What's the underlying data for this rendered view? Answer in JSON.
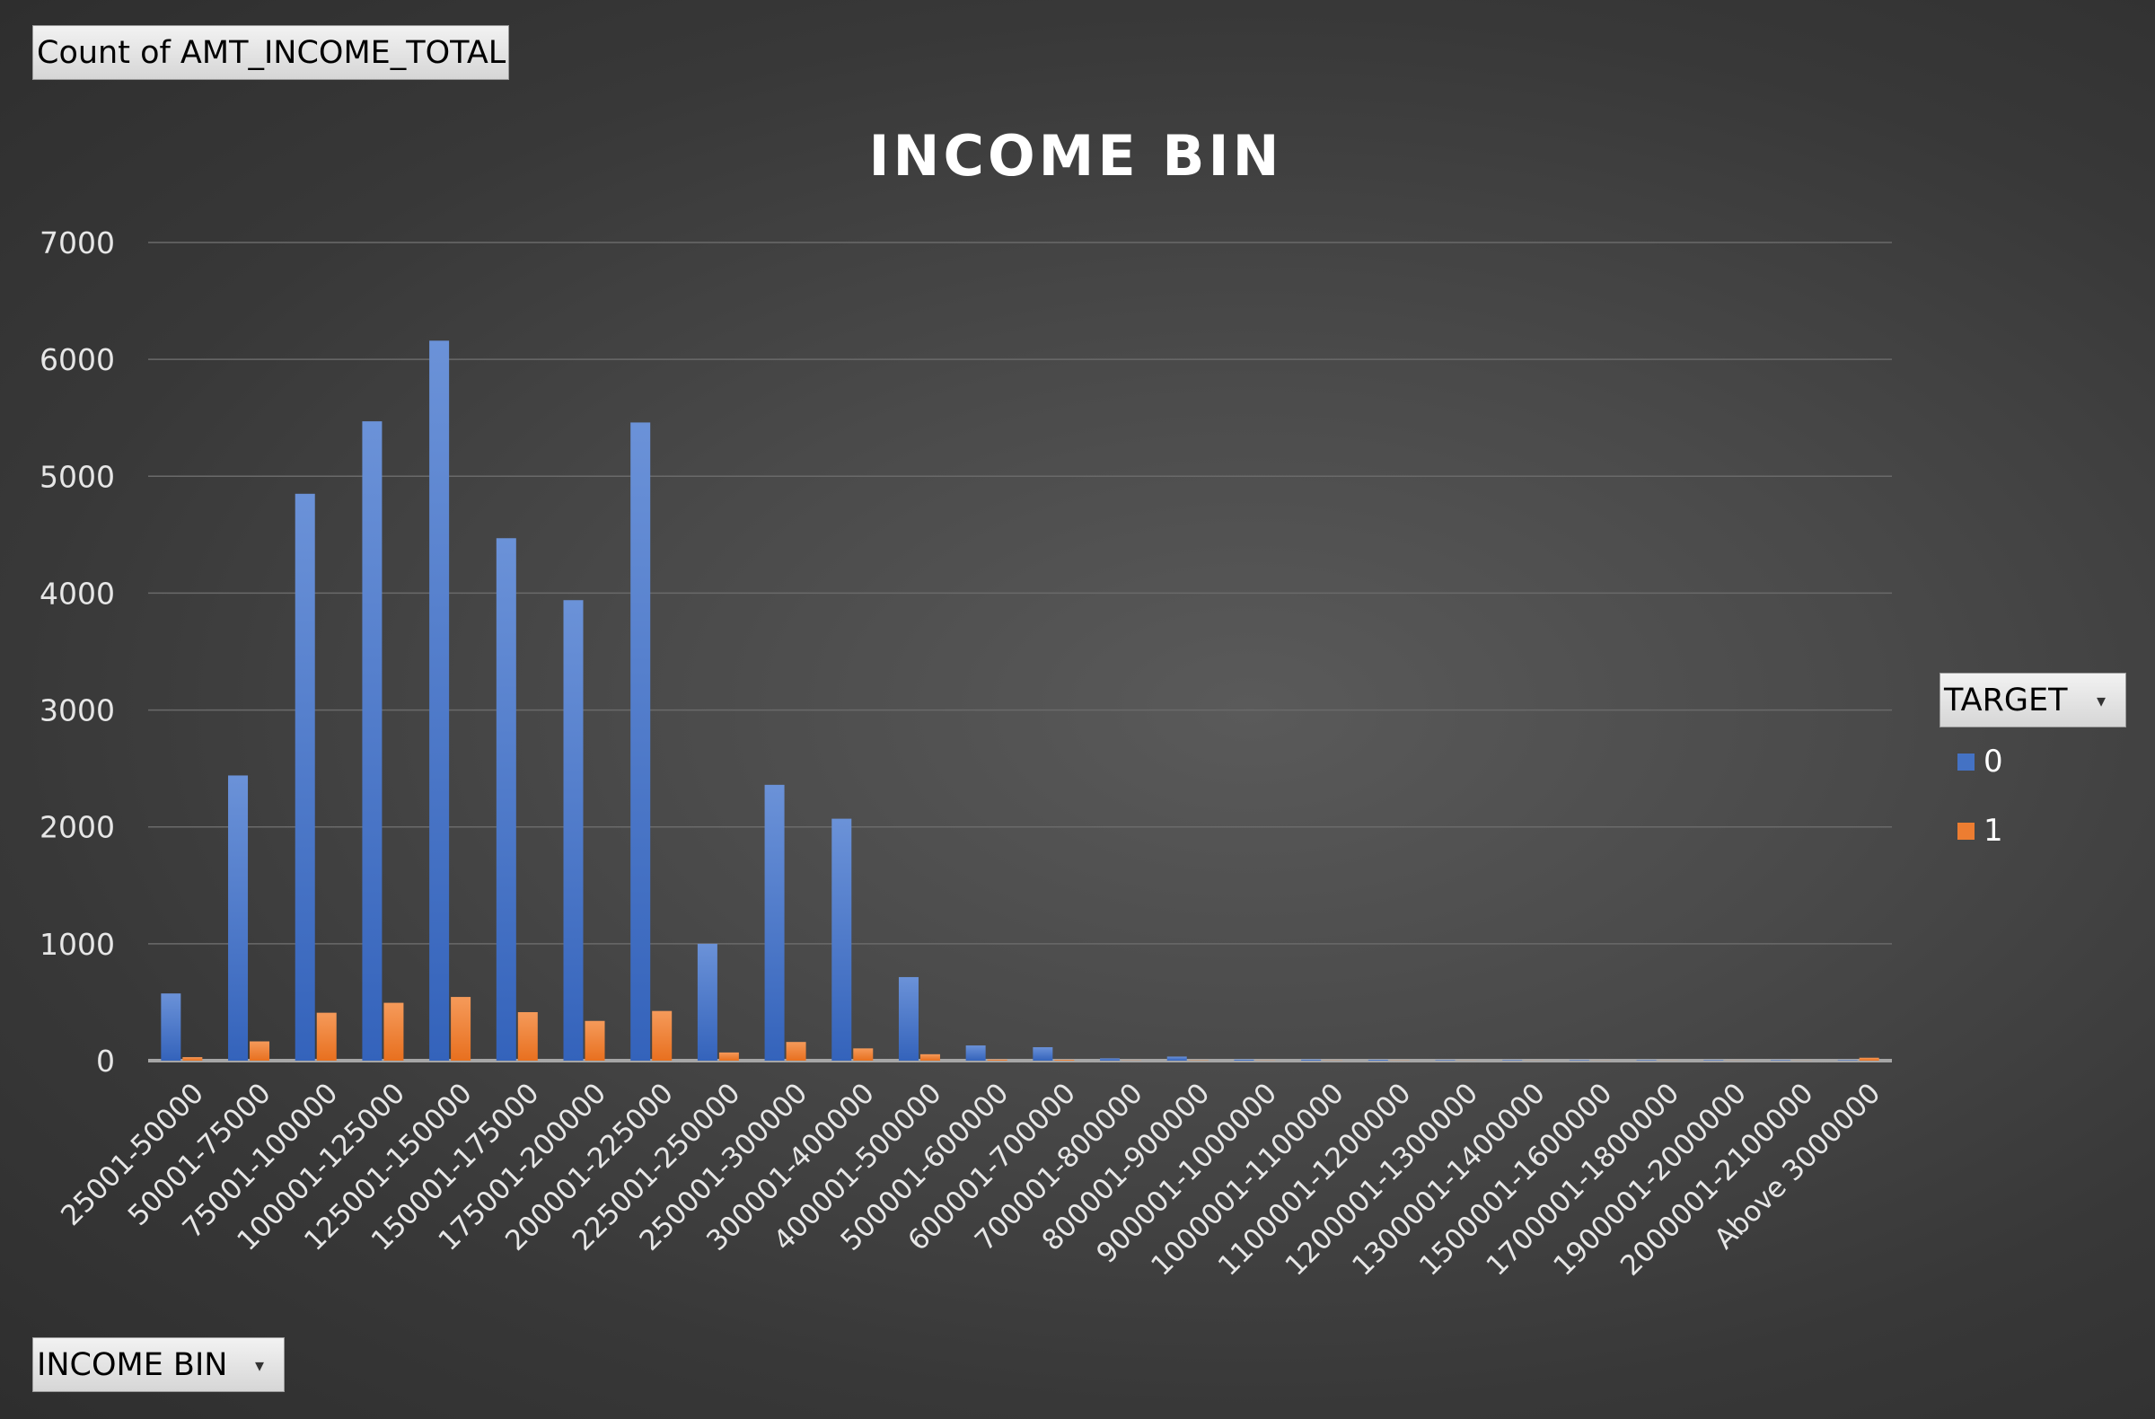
{
  "pivot": {
    "values_field": "Count of AMT_INCOME_TOTAL",
    "axis_field": "INCOME BIN",
    "legend_field": "TARGET",
    "dropdown_icon": "chevron-down-icon"
  },
  "colors": {
    "series0": "#4472c4",
    "series1": "#ed7d31",
    "gridline": "#6a6a6a",
    "axis_line": "#a6a6a6",
    "text": "#ffffff"
  },
  "chart_data": {
    "type": "bar",
    "title": "INCOME BIN",
    "xlabel": "",
    "ylabel": "",
    "ylim": [
      0,
      7000
    ],
    "yticks": [
      0,
      1000,
      2000,
      3000,
      4000,
      5000,
      6000,
      7000
    ],
    "grid": true,
    "legend_position": "right",
    "categories": [
      "25001-50000",
      "50001-75000",
      "75001-100000",
      "100001-125000",
      "125001-150000",
      "150001-175000",
      "175001-200000",
      "200001-225000",
      "225001-250000",
      "250001-300000",
      "300001-400000",
      "400001-500000",
      "500001-600000",
      "600001-700000",
      "700001-800000",
      "800001-900000",
      "900001-1000000",
      "1000001-1100000",
      "1100001-1200000",
      "1200001-1300000",
      "1300001-1400000",
      "1500001-1600000",
      "1700001-1800000",
      "1900001-2000000",
      "2000001-2100000",
      "Above 3000000"
    ],
    "series": [
      {
        "name": "0",
        "values": [
          575,
          2440,
          4850,
          5470,
          6160,
          4470,
          3940,
          5460,
          1000,
          2360,
          2070,
          715,
          130,
          115,
          20,
          35,
          10,
          10,
          8,
          5,
          5,
          5,
          5,
          5,
          5,
          5
        ]
      },
      {
        "name": "1",
        "values": [
          30,
          165,
          410,
          495,
          545,
          415,
          340,
          425,
          70,
          160,
          105,
          55,
          10,
          8,
          2,
          3,
          2,
          2,
          2,
          1,
          1,
          1,
          1,
          1,
          1,
          25
        ]
      }
    ]
  }
}
